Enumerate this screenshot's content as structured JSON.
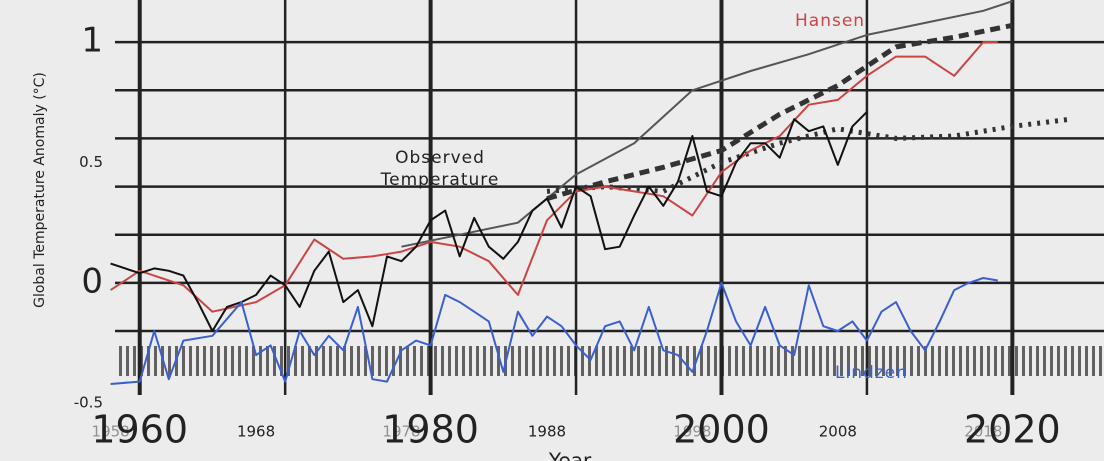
{
  "chart_data": {
    "type": "line",
    "y_label": "Global Temperature Anomaly (°C)",
    "x_label": "Year",
    "xlim": [
      1958.3,
      2026.3
    ],
    "ylim": [
      -0.74,
      1.175
    ],
    "xticks": [
      1958,
      1960,
      1968,
      1978,
      1980,
      1988,
      1998,
      2000,
      2008,
      2018,
      2020
    ],
    "yticks": [
      -0.5,
      0,
      0.5,
      1
    ],
    "x_grid": [
      1960,
      1970,
      1980,
      1990,
      2000,
      2010,
      2020
    ],
    "y_grid": [
      -0.2,
      0,
      0.2,
      0.4,
      0.6,
      0.8,
      1.0
    ],
    "series": [
      {
        "color": "#555555",
        "dash": "solid",
        "x": [
          1978,
          1982,
          1986,
          1990,
          1994,
          1998,
          2002,
          2006,
          2010,
          2014,
          2018,
          2020
        ],
        "values": [
          0.15,
          0.2,
          0.25,
          0.45,
          0.58,
          0.8,
          0.88,
          0.95,
          1.03,
          1.08,
          1.13,
          1.17
        ]
      },
      {
        "color": "#333333",
        "dash": "dashed",
        "x": [
          1988,
          1992,
          1996,
          2000,
          2004,
          2008,
          2012,
          2016,
          2020
        ],
        "values": [
          0.35,
          0.42,
          0.48,
          0.55,
          0.7,
          0.82,
          0.98,
          1.02,
          1.07
        ]
      },
      {
        "color": "#333333",
        "dash": "dotted",
        "x": [
          1988,
          1992,
          1996,
          2000,
          2004,
          2008,
          2012,
          2016,
          2020,
          2024
        ],
        "values": [
          0.38,
          0.4,
          0.38,
          0.5,
          0.58,
          0.64,
          0.6,
          0.61,
          0.65,
          0.68
        ]
      },
      {
        "name": "Hansen",
        "color": "#cc4444",
        "dash": "solid",
        "x": [
          1958,
          1960,
          1963,
          1965,
          1968,
          1970,
          1972,
          1974,
          1976,
          1978,
          1980,
          1982,
          1984,
          1986,
          1988,
          1990,
          1992,
          1994,
          1996,
          1998,
          2000,
          2002,
          2004,
          2006,
          2008,
          2010,
          2012,
          2014,
          2016,
          2018,
          2019
        ],
        "values": [
          -0.03,
          0.05,
          -0.01,
          -0.12,
          -0.08,
          -0.01,
          0.18,
          0.1,
          0.11,
          0.13,
          0.17,
          0.15,
          0.09,
          -0.05,
          0.26,
          0.38,
          0.4,
          0.38,
          0.36,
          0.28,
          0.46,
          0.55,
          0.61,
          0.74,
          0.76,
          0.86,
          0.94,
          0.94,
          0.86,
          1.0,
          1.0
        ]
      },
      {
        "name": "Observed Temperature",
        "color": "#111111",
        "dash": "solid",
        "x": [
          1958,
          1960,
          1961,
          1962,
          1963,
          1964,
          1965,
          1966,
          1967,
          1968,
          1969,
          1970,
          1971,
          1972,
          1973,
          1974,
          1975,
          1976,
          1977,
          1978,
          1979,
          1980,
          1981,
          1982,
          1983,
          1984,
          1985,
          1986,
          1987,
          1988,
          1989,
          1990,
          1991,
          1992,
          1993,
          1994,
          1995,
          1996,
          1997,
          1998,
          1999,
          2000,
          2001,
          2002,
          2003,
          2004,
          2005,
          2006,
          2007,
          2008,
          2009,
          2010
        ],
        "values": [
          0.08,
          0.04,
          0.06,
          0.05,
          0.03,
          -0.08,
          -0.2,
          -0.1,
          -0.08,
          -0.05,
          0.03,
          -0.01,
          -0.1,
          0.05,
          0.13,
          -0.08,
          -0.03,
          -0.18,
          0.11,
          0.09,
          0.15,
          0.26,
          0.3,
          0.11,
          0.27,
          0.15,
          0.1,
          0.17,
          0.3,
          0.35,
          0.23,
          0.4,
          0.36,
          0.14,
          0.15,
          0.28,
          0.4,
          0.32,
          0.42,
          0.61,
          0.38,
          0.36,
          0.5,
          0.58,
          0.58,
          0.52,
          0.68,
          0.63,
          0.65,
          0.49,
          0.65,
          0.71
        ]
      },
      {
        "name": "Lindzen",
        "color": "#3a5fd0",
        "dash": "solid",
        "x": [
          1958,
          1960,
          1961,
          1962,
          1963,
          1965,
          1967,
          1968,
          1969,
          1970,
          1971,
          1972,
          1973,
          1974,
          1975,
          1976,
          1977,
          1978,
          1979,
          1980,
          1981,
          1982,
          1983,
          1984,
          1985,
          1986,
          1987,
          1988,
          1989,
          1990,
          1991,
          1992,
          1993,
          1994,
          1995,
          1996,
          1997,
          1998,
          1999,
          2000,
          2001,
          2002,
          2003,
          2004,
          2005,
          2006,
          2007,
          2008,
          2009,
          2010,
          2011,
          2012,
          2013,
          2014,
          2015,
          2016,
          2017,
          2018,
          2019
        ],
        "values": [
          -0.42,
          -0.41,
          -0.2,
          -0.4,
          -0.24,
          -0.22,
          -0.08,
          -0.3,
          -0.26,
          -0.41,
          -0.2,
          -0.3,
          -0.22,
          -0.28,
          -0.1,
          -0.4,
          -0.41,
          -0.28,
          -0.24,
          -0.26,
          -0.05,
          -0.08,
          -0.12,
          -0.16,
          -0.37,
          -0.12,
          -0.22,
          -0.14,
          -0.18,
          -0.26,
          -0.32,
          -0.18,
          -0.16,
          -0.28,
          -0.1,
          -0.28,
          -0.3,
          -0.37,
          -0.2,
          0.0,
          -0.16,
          -0.26,
          -0.1,
          -0.26,
          -0.3,
          -0.01,
          -0.18,
          -0.2,
          -0.16,
          -0.24,
          -0.12,
          -0.08,
          -0.2,
          -0.28,
          -0.16,
          -0.03,
          0.0,
          0.02,
          0.01
        ]
      }
    ]
  }
}
